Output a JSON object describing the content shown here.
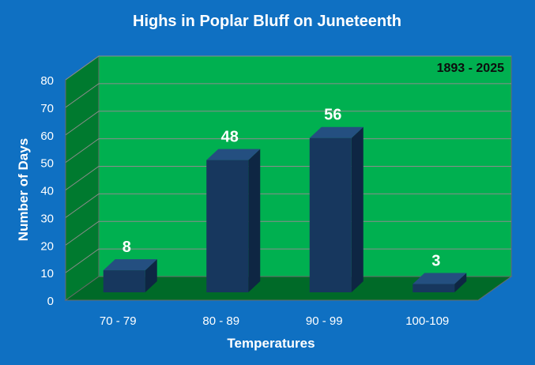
{
  "colors": {
    "background": "#0f70c2",
    "wall_back": "#00b050",
    "wall_side": "#007a2f",
    "floor": "#006a28",
    "bar_front": "#17375e",
    "bar_top": "#244f80",
    "bar_side": "#0e2643",
    "text": "#ffffff",
    "annotation_text": "#0d0d0d"
  },
  "chart_data": {
    "type": "bar",
    "title": "Highs in Poplar Bluff on Juneteenth",
    "annotation": "1893 - 2025",
    "xlabel": "Temperatures",
    "ylabel": "Number of Days",
    "categories": [
      "70 - 79",
      "80 - 89",
      "90 - 99",
      "100-109"
    ],
    "values": [
      8,
      48,
      56,
      3
    ],
    "data_labels": [
      "8",
      "48",
      "56",
      "3"
    ],
    "ylim": [
      0,
      80
    ],
    "yticks": [
      "0",
      "10",
      "20",
      "30",
      "40",
      "50",
      "60",
      "70",
      "80"
    ],
    "grid": true,
    "style": "3d-column"
  }
}
